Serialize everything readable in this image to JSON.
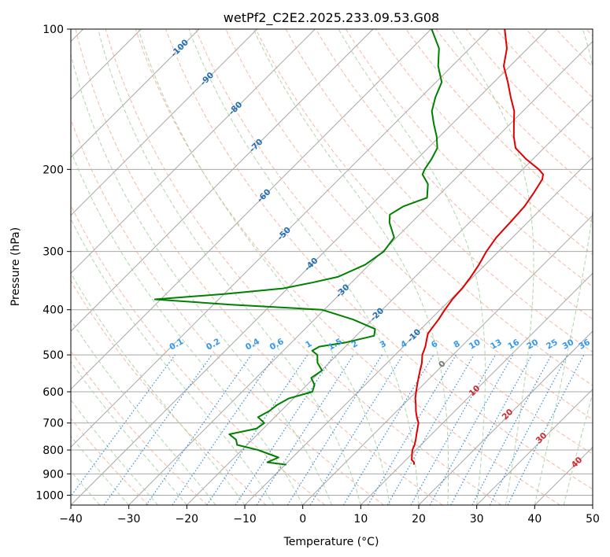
{
  "chart_data": {
    "type": "line",
    "title": "wetPf2_C2E2.2025.233.09.53.G08",
    "xlabel": "Temperature (°C)",
    "ylabel": "Pressure (hPa)",
    "xlim": [
      -40,
      50
    ],
    "ylim": [
      1050,
      100
    ],
    "y_scale": "log",
    "grid": true,
    "x_ticks": [
      "−40",
      "−30",
      "−20",
      "−10",
      "0",
      "10",
      "20",
      "30",
      "40",
      "50"
    ],
    "y_ticks": [
      "100",
      "200",
      "300",
      "400",
      "500",
      "600",
      "700",
      "800",
      "900",
      "1000"
    ],
    "colors": {
      "temperature": "#e00000",
      "dewpoint": "#008000",
      "isotherm": "#a8a8a8",
      "dry_adiabat": "#f2a182",
      "moist_adiabat": "#9fcf9a",
      "mixing_ratio": "#2f8fe0",
      "mixing_label": "#3399ee",
      "isotherm_label": "#1e6fb4",
      "dry_label": "#d62728",
      "adiabat_brown": "#c8a070"
    },
    "temperature_profile": {
      "p": [
        860,
        850,
        840,
        820,
        800,
        780,
        760,
        740,
        720,
        700,
        680,
        660,
        640,
        620,
        600,
        580,
        560,
        540,
        520,
        500,
        480,
        460,
        450,
        440,
        420,
        400,
        380,
        360,
        340,
        320,
        300,
        280,
        260,
        240,
        225,
        210,
        205,
        200,
        190,
        180,
        170,
        160,
        150,
        140,
        130,
        120,
        110,
        100
      ],
      "t": [
        12.2,
        11.8,
        11.0,
        10.2,
        9.4,
        8.9,
        8.2,
        7.4,
        6.6,
        5.8,
        4.5,
        3.3,
        2.2,
        1.0,
        0.0,
        -1.0,
        -2.0,
        -3.0,
        -4.0,
        -5.3,
        -6.2,
        -7.4,
        -8.0,
        -8.2,
        -8.6,
        -9.2,
        -9.7,
        -9.9,
        -10.4,
        -11.1,
        -12.1,
        -12.8,
        -13.0,
        -13.3,
        -14.0,
        -14.9,
        -15.6,
        -17.2,
        -21.2,
        -24.9,
        -27.2,
        -29.3,
        -31.5,
        -34.5,
        -37.6,
        -41.1,
        -43.6,
        -47.3
      ]
    },
    "dewpoint_profile": {
      "p": [
        860,
        850,
        830,
        800,
        780,
        760,
        740,
        720,
        700,
        680,
        660,
        640,
        620,
        600,
        580,
        560,
        540,
        520,
        500,
        490,
        480,
        470,
        455,
        440,
        420,
        400,
        390,
        380,
        370,
        360,
        350,
        340,
        320,
        300,
        280,
        260,
        250,
        240,
        230,
        215,
        205,
        200,
        190,
        180,
        170,
        160,
        150,
        140,
        130,
        120,
        110,
        100
      ],
      "t": [
        -9.8,
        -13.5,
        -12.4,
        -17.2,
        -21.7,
        -22.8,
        -24.9,
        -21.2,
        -20.8,
        -22.9,
        -22.0,
        -21.7,
        -20.8,
        -17.9,
        -18.7,
        -20.5,
        -19.9,
        -22.0,
        -23.4,
        -25.0,
        -24.5,
        -20.6,
        -16.9,
        -17.9,
        -23.3,
        -30.4,
        -47.0,
        -61.0,
        -49.8,
        -40.8,
        -36.8,
        -33.3,
        -30.7,
        -29.8,
        -30.4,
        -33.8,
        -35.1,
        -34.2,
        -31.6,
        -33.8,
        -36.4,
        -36.9,
        -37.5,
        -38.4,
        -40.5,
        -43.1,
        -45.7,
        -47.5,
        -49.0,
        -52.4,
        -55.3,
        -59.9
      ]
    },
    "isotherm_labels": [
      "-100",
      "-90",
      "-80",
      "-70",
      "-60",
      "-50",
      "-40",
      "-30",
      "-20",
      "-10"
    ],
    "mixing_ratio_labels": [
      "0.1",
      "0.2",
      "0.4",
      "0.6",
      "1",
      "1.5",
      "2",
      "3",
      "4",
      "6",
      "8",
      "10",
      "13",
      "16",
      "20",
      "25",
      "30",
      "36"
    ],
    "dry_adiabat_labels": [
      "0",
      "10",
      "20",
      "30",
      "40"
    ]
  }
}
